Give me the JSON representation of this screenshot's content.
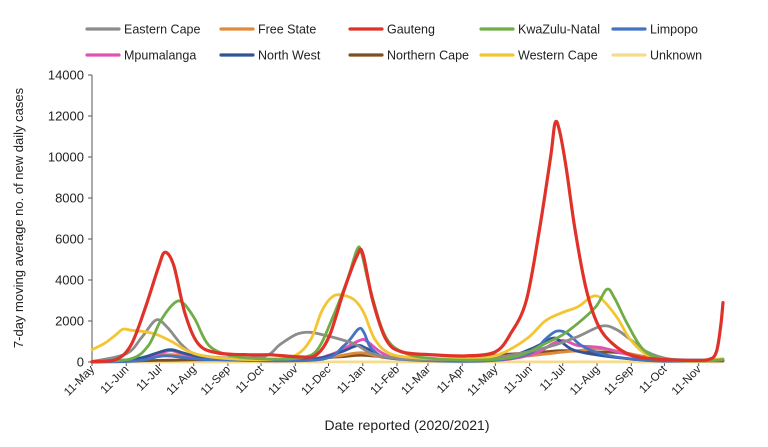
{
  "chart_data": {
    "type": "line",
    "xlabel": "Date reported (2020/2021)",
    "ylabel": "7-day moving average no. of new daily cases",
    "ylim": [
      0,
      14000
    ],
    "yticks": [
      0,
      2000,
      4000,
      6000,
      8000,
      10000,
      12000,
      14000
    ],
    "ytick_labels": [
      "0",
      "2000",
      "4000",
      "6000",
      "8000",
      "10000",
      "12000",
      "14000"
    ],
    "xlim": [
      "2020-05-11",
      "2021-12-03"
    ],
    "xticks": [
      "2020-05-11",
      "2020-06-11",
      "2020-07-11",
      "2020-08-11",
      "2020-09-11",
      "2020-10-11",
      "2020-11-11",
      "2020-12-11",
      "2021-01-11",
      "2021-02-11",
      "2021-03-11",
      "2021-04-11",
      "2021-05-11",
      "2021-06-11",
      "2021-07-11",
      "2021-08-11",
      "2021-09-11",
      "2021-10-11",
      "2021-11-11"
    ],
    "xtick_labels": [
      "11-May",
      "11-Jun",
      "11-Jul",
      "11-Aug",
      "11-Sep",
      "11-Oct",
      "11-Nov",
      "11-Dec",
      "11-Jan",
      "11-Feb",
      "11-Mar",
      "11-Apr",
      "11-May",
      "11-Jun",
      "11-Jul",
      "11-Aug",
      "11-Sep",
      "11-Oct",
      "11-Nov"
    ],
    "grid": false,
    "legend_position": "top",
    "series": [
      {
        "name": "Eastern Cape",
        "color": "#8c8c8c",
        "points": [
          [
            "2020-05-11",
            20
          ],
          [
            "2020-06-11",
            400
          ],
          [
            "2020-06-25",
            1200
          ],
          [
            "2020-07-08",
            2050
          ],
          [
            "2020-07-18",
            1700
          ],
          [
            "2020-08-01",
            800
          ],
          [
            "2020-08-15",
            350
          ],
          [
            "2020-09-15",
            200
          ],
          [
            "2020-10-15",
            300
          ],
          [
            "2020-10-28",
            850
          ],
          [
            "2020-11-12",
            1350
          ],
          [
            "2020-11-24",
            1450
          ],
          [
            "2020-12-08",
            1300
          ],
          [
            "2020-12-22",
            1100
          ],
          [
            "2021-01-05",
            850
          ],
          [
            "2021-01-20",
            400
          ],
          [
            "2021-02-15",
            150
          ],
          [
            "2021-03-20",
            100
          ],
          [
            "2021-04-20",
            150
          ],
          [
            "2021-05-15",
            250
          ],
          [
            "2021-06-10",
            500
          ],
          [
            "2021-07-05",
            850
          ],
          [
            "2021-07-25",
            1250
          ],
          [
            "2021-08-15",
            1750
          ],
          [
            "2021-08-28",
            1600
          ],
          [
            "2021-09-10",
            1100
          ],
          [
            "2021-09-25",
            500
          ],
          [
            "2021-10-15",
            150
          ],
          [
            "2021-11-15",
            100
          ],
          [
            "2021-12-03",
            150
          ]
        ]
      },
      {
        "name": "Free State",
        "color": "#e08a3c",
        "points": [
          [
            "2020-05-11",
            10
          ],
          [
            "2020-06-20",
            100
          ],
          [
            "2020-07-15",
            350
          ],
          [
            "2020-08-05",
            300
          ],
          [
            "2020-09-01",
            150
          ],
          [
            "2020-10-15",
            100
          ],
          [
            "2020-11-20",
            150
          ],
          [
            "2020-12-20",
            300
          ],
          [
            "2021-01-10",
            450
          ],
          [
            "2021-02-01",
            200
          ],
          [
            "2021-03-15",
            100
          ],
          [
            "2021-05-01",
            150
          ],
          [
            "2021-06-10",
            300
          ],
          [
            "2021-07-05",
            450
          ],
          [
            "2021-07-25",
            550
          ],
          [
            "2021-08-15",
            650
          ],
          [
            "2021-09-10",
            400
          ],
          [
            "2021-10-05",
            150
          ],
          [
            "2021-11-15",
            60
          ],
          [
            "2021-12-03",
            120
          ]
        ]
      },
      {
        "name": "Gauteng",
        "color": "#e03228",
        "points": [
          [
            "2020-05-11",
            20
          ],
          [
            "2020-06-01",
            100
          ],
          [
            "2020-06-15",
            800
          ],
          [
            "2020-06-28",
            2600
          ],
          [
            "2020-07-10",
            4600
          ],
          [
            "2020-07-16",
            5350
          ],
          [
            "2020-07-24",
            4700
          ],
          [
            "2020-08-03",
            2400
          ],
          [
            "2020-08-15",
            900
          ],
          [
            "2020-09-01",
            450
          ],
          [
            "2020-10-01",
            350
          ],
          [
            "2020-10-20",
            350
          ],
          [
            "2020-11-15",
            250
          ],
          [
            "2020-11-30",
            350
          ],
          [
            "2020-12-12",
            1300
          ],
          [
            "2020-12-25",
            3500
          ],
          [
            "2021-01-06",
            5200
          ],
          [
            "2021-01-11",
            5300
          ],
          [
            "2021-01-20",
            3000
          ],
          [
            "2021-02-01",
            1100
          ],
          [
            "2021-02-15",
            500
          ],
          [
            "2021-03-15",
            350
          ],
          [
            "2021-04-15",
            300
          ],
          [
            "2021-05-11",
            500
          ],
          [
            "2021-05-25",
            1400
          ],
          [
            "2021-06-08",
            3000
          ],
          [
            "2021-06-20",
            6500
          ],
          [
            "2021-06-30",
            10000
          ],
          [
            "2021-07-04",
            11650
          ],
          [
            "2021-07-08",
            11300
          ],
          [
            "2021-07-14",
            9500
          ],
          [
            "2021-07-22",
            6500
          ],
          [
            "2021-08-01",
            3600
          ],
          [
            "2021-08-12",
            1800
          ],
          [
            "2021-08-25",
            900
          ],
          [
            "2021-09-10",
            350
          ],
          [
            "2021-10-01",
            150
          ],
          [
            "2021-11-01",
            80
          ],
          [
            "2021-11-20",
            120
          ],
          [
            "2021-11-27",
            500
          ],
          [
            "2021-12-01",
            1800
          ],
          [
            "2021-12-03",
            2900
          ]
        ]
      },
      {
        "name": "KwaZulu-Natal",
        "color": "#70ad47",
        "points": [
          [
            "2020-05-11",
            10
          ],
          [
            "2020-06-15",
            150
          ],
          [
            "2020-07-01",
            800
          ],
          [
            "2020-07-12",
            2000
          ],
          [
            "2020-07-25",
            2900
          ],
          [
            "2020-08-02",
            2850
          ],
          [
            "2020-08-12",
            2100
          ],
          [
            "2020-08-25",
            800
          ],
          [
            "2020-09-15",
            300
          ],
          [
            "2020-10-15",
            150
          ],
          [
            "2020-11-15",
            200
          ],
          [
            "2020-12-01",
            600
          ],
          [
            "2020-12-15",
            2200
          ],
          [
            "2020-12-28",
            4000
          ],
          [
            "2021-01-06",
            5500
          ],
          [
            "2021-01-10",
            5300
          ],
          [
            "2021-01-18",
            3500
          ],
          [
            "2021-02-01",
            1200
          ],
          [
            "2021-02-20",
            400
          ],
          [
            "2021-03-20",
            150
          ],
          [
            "2021-05-01",
            100
          ],
          [
            "2021-06-01",
            300
          ],
          [
            "2021-06-25",
            900
          ],
          [
            "2021-07-10",
            1300
          ],
          [
            "2021-07-25",
            1900
          ],
          [
            "2021-08-10",
            2700
          ],
          [
            "2021-08-20",
            3550
          ],
          [
            "2021-08-27",
            3100
          ],
          [
            "2021-09-08",
            1800
          ],
          [
            "2021-09-22",
            600
          ],
          [
            "2021-10-10",
            150
          ],
          [
            "2021-11-15",
            50
          ],
          [
            "2021-12-03",
            120
          ]
        ]
      },
      {
        "name": "Limpopo",
        "color": "#4472c4",
        "points": [
          [
            "2020-05-11",
            0
          ],
          [
            "2020-06-20",
            50
          ],
          [
            "2020-07-15",
            300
          ],
          [
            "2020-08-05",
            200
          ],
          [
            "2020-09-01",
            100
          ],
          [
            "2020-12-01",
            100
          ],
          [
            "2020-12-25",
            800
          ],
          [
            "2021-01-07",
            1600
          ],
          [
            "2021-01-12",
            1450
          ],
          [
            "2021-01-20",
            600
          ],
          [
            "2021-02-10",
            150
          ],
          [
            "2021-05-01",
            50
          ],
          [
            "2021-06-10",
            400
          ],
          [
            "2021-06-25",
            1100
          ],
          [
            "2021-07-05",
            1500
          ],
          [
            "2021-07-15",
            1400
          ],
          [
            "2021-07-28",
            800
          ],
          [
            "2021-08-15",
            400
          ],
          [
            "2021-09-10",
            150
          ],
          [
            "2021-10-10",
            40
          ],
          [
            "2021-12-03",
            80
          ]
        ]
      },
      {
        "name": "Mpumalanga",
        "color": "#e052b5",
        "points": [
          [
            "2020-05-11",
            0
          ],
          [
            "2020-06-20",
            100
          ],
          [
            "2020-07-10",
            400
          ],
          [
            "2020-07-22",
            550
          ],
          [
            "2020-08-08",
            300
          ],
          [
            "2020-09-05",
            120
          ],
          [
            "2020-11-15",
            80
          ],
          [
            "2020-12-15",
            400
          ],
          [
            "2021-01-08",
            1050
          ],
          [
            "2021-01-15",
            1000
          ],
          [
            "2021-01-30",
            400
          ],
          [
            "2021-02-20",
            120
          ],
          [
            "2021-05-10",
            80
          ],
          [
            "2021-06-15",
            400
          ],
          [
            "2021-07-02",
            900
          ],
          [
            "2021-07-12",
            1050
          ],
          [
            "2021-07-25",
            800
          ],
          [
            "2021-08-15",
            700
          ],
          [
            "2021-09-05",
            400
          ],
          [
            "2021-10-01",
            100
          ],
          [
            "2021-12-03",
            60
          ]
        ]
      },
      {
        "name": "North West",
        "color": "#2f5597",
        "points": [
          [
            "2020-05-11",
            0
          ],
          [
            "2020-06-20",
            150
          ],
          [
            "2020-07-12",
            500
          ],
          [
            "2020-07-22",
            600
          ],
          [
            "2020-08-08",
            350
          ],
          [
            "2020-09-05",
            120
          ],
          [
            "2020-11-20",
            100
          ],
          [
            "2020-12-20",
            450
          ],
          [
            "2021-01-06",
            800
          ],
          [
            "2021-01-15",
            650
          ],
          [
            "2021-02-05",
            200
          ],
          [
            "2021-04-15",
            100
          ],
          [
            "2021-05-20",
            200
          ],
          [
            "2021-06-15",
            700
          ],
          [
            "2021-07-01",
            1150
          ],
          [
            "2021-07-08",
            1050
          ],
          [
            "2021-07-20",
            600
          ],
          [
            "2021-08-10",
            350
          ],
          [
            "2021-09-10",
            150
          ],
          [
            "2021-10-10",
            50
          ],
          [
            "2021-12-03",
            70
          ]
        ]
      },
      {
        "name": "Northern Cape",
        "color": "#7f4f1f",
        "points": [
          [
            "2020-05-11",
            0
          ],
          [
            "2020-07-10",
            80
          ],
          [
            "2020-08-10",
            100
          ],
          [
            "2020-09-10",
            120
          ],
          [
            "2020-11-10",
            150
          ],
          [
            "2020-12-20",
            250
          ],
          [
            "2021-01-10",
            330
          ],
          [
            "2021-02-10",
            200
          ],
          [
            "2021-03-15",
            120
          ],
          [
            "2021-04-15",
            150
          ],
          [
            "2021-05-15",
            350
          ],
          [
            "2021-06-15",
            450
          ],
          [
            "2021-07-10",
            550
          ],
          [
            "2021-08-05",
            500
          ],
          [
            "2021-09-01",
            450
          ],
          [
            "2021-09-25",
            250
          ],
          [
            "2021-10-20",
            80
          ],
          [
            "2021-12-03",
            60
          ]
        ]
      },
      {
        "name": "Western Cape",
        "color": "#f4c532",
        "points": [
          [
            "2020-05-11",
            600
          ],
          [
            "2020-05-22",
            900
          ],
          [
            "2020-06-01",
            1300
          ],
          [
            "2020-06-08",
            1600
          ],
          [
            "2020-06-15",
            1550
          ],
          [
            "2020-06-25",
            1500
          ],
          [
            "2020-07-08",
            1350
          ],
          [
            "2020-07-22",
            1000
          ],
          [
            "2020-08-05",
            550
          ],
          [
            "2020-08-20",
            300
          ],
          [
            "2020-09-15",
            150
          ],
          [
            "2020-10-15",
            120
          ],
          [
            "2020-11-10",
            300
          ],
          [
            "2020-11-25",
            1100
          ],
          [
            "2020-12-05",
            2500
          ],
          [
            "2020-12-15",
            3200
          ],
          [
            "2020-12-25",
            3250
          ],
          [
            "2021-01-04",
            3000
          ],
          [
            "2021-01-12",
            2400
          ],
          [
            "2021-01-22",
            1100
          ],
          [
            "2021-02-05",
            400
          ],
          [
            "2021-03-01",
            200
          ],
          [
            "2021-04-01",
            150
          ],
          [
            "2021-05-01",
            200
          ],
          [
            "2021-05-20",
            500
          ],
          [
            "2021-06-10",
            1200
          ],
          [
            "2021-06-25",
            2000
          ],
          [
            "2021-07-10",
            2400
          ],
          [
            "2021-07-25",
            2700
          ],
          [
            "2021-08-05",
            3150
          ],
          [
            "2021-08-12",
            3200
          ],
          [
            "2021-08-20",
            2800
          ],
          [
            "2021-08-30",
            2100
          ],
          [
            "2021-09-10",
            1100
          ],
          [
            "2021-09-25",
            350
          ],
          [
            "2021-10-10",
            120
          ],
          [
            "2021-11-10",
            60
          ],
          [
            "2021-12-03",
            150
          ]
        ]
      },
      {
        "name": "Unknown",
        "color": "#f5dc8c",
        "points": [
          [
            "2020-05-11",
            0
          ],
          [
            "2021-12-03",
            10
          ]
        ]
      }
    ]
  }
}
